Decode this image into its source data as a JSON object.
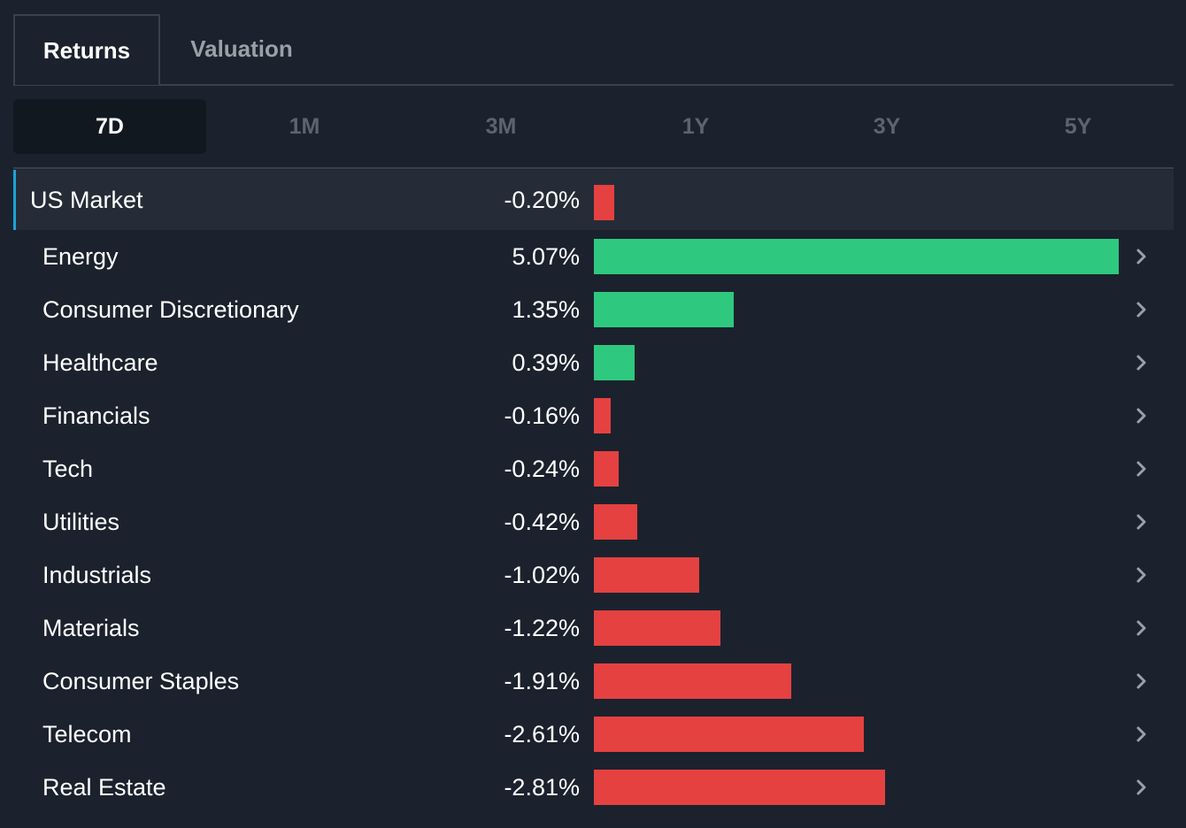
{
  "main_tabs": [
    {
      "label": "Returns",
      "active": true
    },
    {
      "label": "Valuation",
      "active": false
    }
  ],
  "period_tabs": [
    {
      "label": "7D",
      "active": true
    },
    {
      "label": "1M",
      "active": false
    },
    {
      "label": "3M",
      "active": false
    },
    {
      "label": "1Y",
      "active": false
    },
    {
      "label": "3Y",
      "active": false
    },
    {
      "label": "5Y",
      "active": false
    }
  ],
  "colors": {
    "positive": "#2ec97e",
    "negative": "#e54141",
    "accent": "#1aa3d9"
  },
  "market_row": {
    "label": "US Market",
    "value": "-0.20%",
    "return_pct": -0.2
  },
  "sectors": [
    {
      "label": "Energy",
      "value": "5.07%",
      "return_pct": 5.07
    },
    {
      "label": "Consumer Discretionary",
      "value": "1.35%",
      "return_pct": 1.35
    },
    {
      "label": "Healthcare",
      "value": "0.39%",
      "return_pct": 0.39
    },
    {
      "label": "Financials",
      "value": "-0.16%",
      "return_pct": -0.16
    },
    {
      "label": "Tech",
      "value": "-0.24%",
      "return_pct": -0.24
    },
    {
      "label": "Utilities",
      "value": "-0.42%",
      "return_pct": -0.42
    },
    {
      "label": "Industrials",
      "value": "-1.02%",
      "return_pct": -1.02
    },
    {
      "label": "Materials",
      "value": "-1.22%",
      "return_pct": -1.22
    },
    {
      "label": "Consumer Staples",
      "value": "-1.91%",
      "return_pct": -1.91
    },
    {
      "label": "Telecom",
      "value": "-2.61%",
      "return_pct": -2.61
    },
    {
      "label": "Real Estate",
      "value": "-2.81%",
      "return_pct": -2.81
    }
  ],
  "icons": {
    "row_chevron": "chevron-right-icon"
  }
}
